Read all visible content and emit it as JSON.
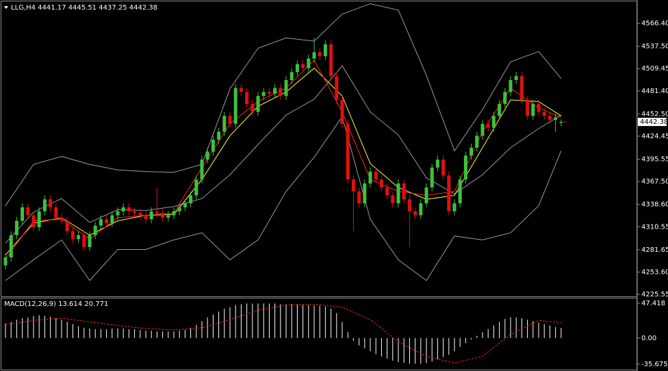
{
  "chart_data": {
    "type": "candlestick",
    "symbol": "LLG,H4",
    "up_color": "#3cc33c",
    "down_color": "#e01010",
    "ylim": [
      4223,
      4591.4
    ],
    "yticks": [
      {
        "value": 4566.4,
        "label": "4566.40"
      },
      {
        "value": 4537.5,
        "label": "4537.50"
      },
      {
        "value": 4509.45,
        "label": "4509.45"
      },
      {
        "value": 4481.4,
        "label": "4481.40"
      },
      {
        "value": 4452.5,
        "label": "4452.50"
      },
      {
        "value": 4424.45,
        "label": "4424.45"
      },
      {
        "value": 4395.55,
        "label": "4395.55"
      },
      {
        "value": 4367.5,
        "label": "4367.50"
      },
      {
        "value": 4338.6,
        "label": "4338.60"
      },
      {
        "value": 4310.55,
        "label": "4310.55"
      },
      {
        "value": 4281.65,
        "label": "4281.65"
      },
      {
        "value": 4253.6,
        "label": "4253.60"
      },
      {
        "value": 4225.55,
        "label": "4225.55"
      }
    ],
    "open": [
      4262,
      4272,
      4300,
      4318,
      4335,
      4325,
      4310,
      4330,
      4345,
      4335,
      4322,
      4318,
      4305,
      4295,
      4300,
      4285,
      4300,
      4312,
      4320,
      4315,
      4325,
      4330,
      4335,
      4330,
      4328,
      4325,
      4320,
      4330,
      4328,
      4322,
      4325,
      4330,
      4335,
      4340,
      4350,
      4370,
      4395,
      4405,
      4420,
      4430,
      4450,
      4440,
      4485,
      4480,
      4465,
      4455,
      4475,
      4480,
      4478,
      4485,
      4475,
      4495,
      4505,
      4515,
      4510,
      4522,
      4530,
      4525,
      4540,
      4500,
      4470,
      4440,
      4370,
      4355,
      4340,
      4365,
      4380,
      4370,
      4360,
      4350,
      4340,
      4365,
      4345,
      4330,
      4325,
      4340,
      4360,
      4385,
      4395,
      4375,
      4330,
      4340,
      4370,
      4400,
      4410,
      4425,
      4440,
      4435,
      4450,
      4465,
      4480,
      4495,
      4500,
      4470,
      4450,
      4465,
      4455,
      4450,
      4445,
      4441.17
    ],
    "high": [
      4277,
      4305,
      4323,
      4340,
      4340,
      4330,
      4335,
      4350,
      4350,
      4340,
      4327,
      4323,
      4310,
      4305,
      4305,
      4305,
      4317,
      4325,
      4325,
      4330,
      4335,
      4340,
      4340,
      4335,
      4333,
      4330,
      4335,
      4360,
      4333,
      4330,
      4335,
      4340,
      4345,
      4355,
      4375,
      4400,
      4410,
      4425,
      4435,
      4455,
      4455,
      4490,
      4490,
      4485,
      4470,
      4480,
      4485,
      4485,
      4490,
      4490,
      4500,
      4510,
      4520,
      4520,
      4527,
      4548,
      4535,
      4545,
      4545,
      4505,
      4475,
      4445,
      4375,
      4360,
      4370,
      4385,
      4385,
      4375,
      4365,
      4355,
      4370,
      4370,
      4350,
      4335,
      4345,
      4365,
      4390,
      4400,
      4400,
      4380,
      4345,
      4375,
      4405,
      4415,
      4430,
      4445,
      4445,
      4455,
      4470,
      4485,
      4500,
      4505,
      4505,
      4475,
      4470,
      4470,
      4460,
      4455,
      4453,
      4445.51
    ],
    "low": [
      4257,
      4267,
      4295,
      4313,
      4320,
      4305,
      4305,
      4325,
      4330,
      4317,
      4313,
      4300,
      4290,
      4290,
      4280,
      4280,
      4295,
      4307,
      4310,
      4310,
      4320,
      4325,
      4325,
      4323,
      4320,
      4315,
      4315,
      4323,
      4317,
      4317,
      4320,
      4325,
      4330,
      4335,
      4345,
      4365,
      4390,
      4400,
      4415,
      4425,
      4435,
      4435,
      4475,
      4460,
      4450,
      4450,
      4470,
      4473,
      4473,
      4470,
      4470,
      4490,
      4500,
      4505,
      4505,
      4517,
      4520,
      4520,
      4495,
      4465,
      4435,
      4365,
      4305,
      4335,
      4335,
      4360,
      4365,
      4355,
      4345,
      4335,
      4335,
      4340,
      4285,
      4320,
      4320,
      4335,
      4355,
      4380,
      4370,
      4325,
      4325,
      4335,
      4365,
      4395,
      4405,
      4420,
      4430,
      4430,
      4445,
      4460,
      4475,
      4490,
      4465,
      4445,
      4445,
      4450,
      4445,
      4440,
      4430,
      4437.25
    ],
    "close": [
      4272,
      4300,
      4318,
      4335,
      4325,
      4310,
      4330,
      4345,
      4335,
      4322,
      4318,
      4305,
      4295,
      4300,
      4285,
      4300,
      4312,
      4320,
      4315,
      4325,
      4330,
      4335,
      4330,
      4328,
      4325,
      4320,
      4330,
      4328,
      4322,
      4325,
      4330,
      4335,
      4340,
      4350,
      4370,
      4395,
      4405,
      4420,
      4430,
      4450,
      4440,
      4485,
      4480,
      4465,
      4455,
      4475,
      4480,
      4478,
      4485,
      4475,
      4495,
      4505,
      4515,
      4510,
      4522,
      4530,
      4525,
      4540,
      4500,
      4470,
      4440,
      4370,
      4355,
      4340,
      4365,
      4380,
      4370,
      4360,
      4350,
      4340,
      4365,
      4345,
      4330,
      4325,
      4340,
      4360,
      4385,
      4395,
      4375,
      4330,
      4340,
      4370,
      4400,
      4410,
      4425,
      4440,
      4435,
      4450,
      4465,
      4480,
      4495,
      4500,
      4470,
      4450,
      4465,
      4455,
      4450,
      4445,
      4448,
      4442.38
    ],
    "lines": {
      "x": [
        0,
        5,
        10,
        15,
        20,
        25,
        30,
        35,
        40,
        45,
        50,
        55,
        60,
        65,
        70,
        75,
        80,
        85,
        90,
        95,
        99
      ],
      "series": [
        {
          "color": "#9a9aa8",
          "values": [
            4337,
            4389,
            4399,
            4389,
            4382,
            4380,
            4379,
            4389,
            4484,
            4535,
            4548,
            4544,
            4578,
            4591,
            4583,
            4501,
            4406,
            4458,
            4518,
            4531,
            4497
          ]
        },
        {
          "color": "#9a9aa8",
          "values": [
            4243,
            4269,
            4294,
            4243,
            4282,
            4282,
            4294,
            4303,
            4269,
            4294,
            4355,
            4398,
            4449,
            4320,
            4269,
            4243,
            4299,
            4294,
            4303,
            4337,
            4406
          ]
        },
        {
          "color": "#9a9aa8",
          "values": [
            4290,
            4329,
            4346,
            4316,
            4332,
            4331,
            4336,
            4346,
            4376,
            4414,
            4451,
            4471,
            4513,
            4455,
            4426,
            4372,
            4352,
            4376,
            4410,
            4434,
            4451
          ]
        },
        {
          "color": "#ffff40",
          "values": [
            4275,
            4315,
            4322,
            4300,
            4318,
            4325,
            4326,
            4370,
            4425,
            4462,
            4480,
            4510,
            4475,
            4390,
            4360,
            4345,
            4350,
            4410,
            4470,
            4468,
            4450
          ]
        },
        {
          "color": "#ff2020",
          "values": [
            4270,
            4318,
            4320,
            4295,
            4322,
            4325,
            4328,
            4385,
            4440,
            4468,
            4485,
            4520,
            4455,
            4370,
            4355,
            4350,
            4355,
            4430,
            4485,
            4460,
            4448
          ]
        }
      ]
    },
    "macd": {
      "label": "MACD(12,26,9)",
      "color": "#ffffff",
      "ylim": [
        -43.1,
        53
      ],
      "yticks": [
        47.418,
        {
          "value": 0,
          "label": "0.00"
        },
        -35.675
      ],
      "values": [
        20,
        22,
        25,
        27,
        28,
        30,
        31,
        30,
        29,
        27,
        25,
        22,
        19,
        16,
        14,
        13,
        12,
        12,
        12,
        13,
        13,
        13,
        12,
        12,
        11,
        10,
        10,
        9,
        9,
        9,
        9,
        10,
        11,
        14,
        18,
        23,
        28,
        32,
        36,
        40,
        42,
        45,
        46,
        47,
        47,
        47,
        47,
        47,
        47,
        46,
        46,
        46,
        46,
        45,
        45,
        44,
        44,
        43,
        40,
        34,
        22,
        8,
        -4,
        -10,
        -14,
        -18,
        -22,
        -25,
        -28,
        -31,
        -33,
        -34,
        -35,
        -35,
        -35,
        -34,
        -32,
        -29,
        -26,
        -23,
        -18,
        -12,
        -7,
        -2,
        3,
        8,
        12,
        17,
        22,
        26,
        28,
        28,
        27,
        25,
        23,
        21,
        19,
        17,
        15,
        13.614
      ],
      "signal": {
        "color": "#ff2020",
        "x": [
          0,
          5,
          10,
          15,
          20,
          25,
          30,
          35,
          40,
          45,
          50,
          55,
          60,
          65,
          70,
          75,
          80,
          85,
          90,
          95,
          99
        ],
        "values": [
          18,
          24,
          27,
          22,
          17,
          13,
          11,
          14,
          25,
          38,
          45,
          46,
          42,
          25,
          -5,
          -25,
          -34,
          -25,
          5,
          24,
          20.771
        ]
      }
    }
  }
}
